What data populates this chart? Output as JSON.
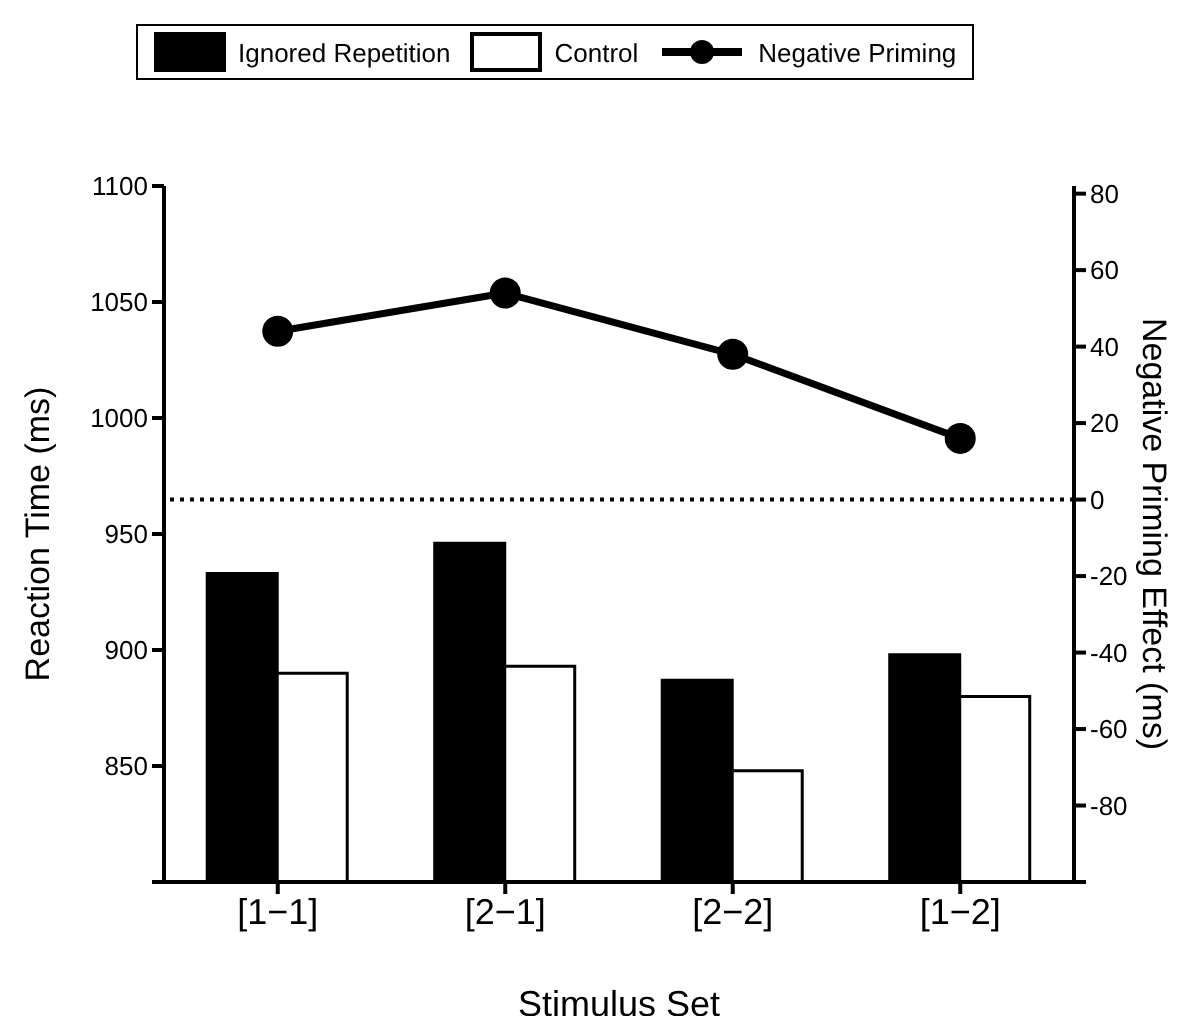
{
  "chart_data": {
    "type": "bar",
    "xlabel": "Stimulus Set",
    "ylabel": "Reaction Time (ms)",
    "y2label": "Negative Priming Effect (ms)",
    "categories": [
      "[1−1]",
      "[2−1]",
      "[2−2]",
      "[1−2]"
    ],
    "series": [
      {
        "name": "Ignored Repetition",
        "color": "#000000",
        "values": [
          933,
          946,
          887,
          898
        ]
      },
      {
        "name": "Control",
        "color": "#ffffff",
        "values": [
          890,
          893,
          848,
          880
        ]
      },
      {
        "name": "Negative Priming",
        "type": "line",
        "axis": "y2",
        "color": "#000000",
        "values": [
          44,
          54,
          38,
          16
        ]
      }
    ],
    "ylim": [
      800,
      1100
    ],
    "yticks": [
      {
        "value": 800,
        "label": null
      },
      850,
      900,
      950,
      1000,
      1050,
      1100
    ],
    "y2lim": [
      -100,
      82
    ],
    "y2ticks": [
      {
        "value": -100,
        "label": null
      },
      -80,
      -60,
      -40,
      -20,
      0,
      20,
      40,
      60,
      80
    ],
    "ref_lines": [
      {
        "axis": "y2",
        "value": 0,
        "line_style": "dotted",
        "color": "#000000"
      }
    ],
    "marker": "circle",
    "legend": "top",
    "grid": false
  }
}
